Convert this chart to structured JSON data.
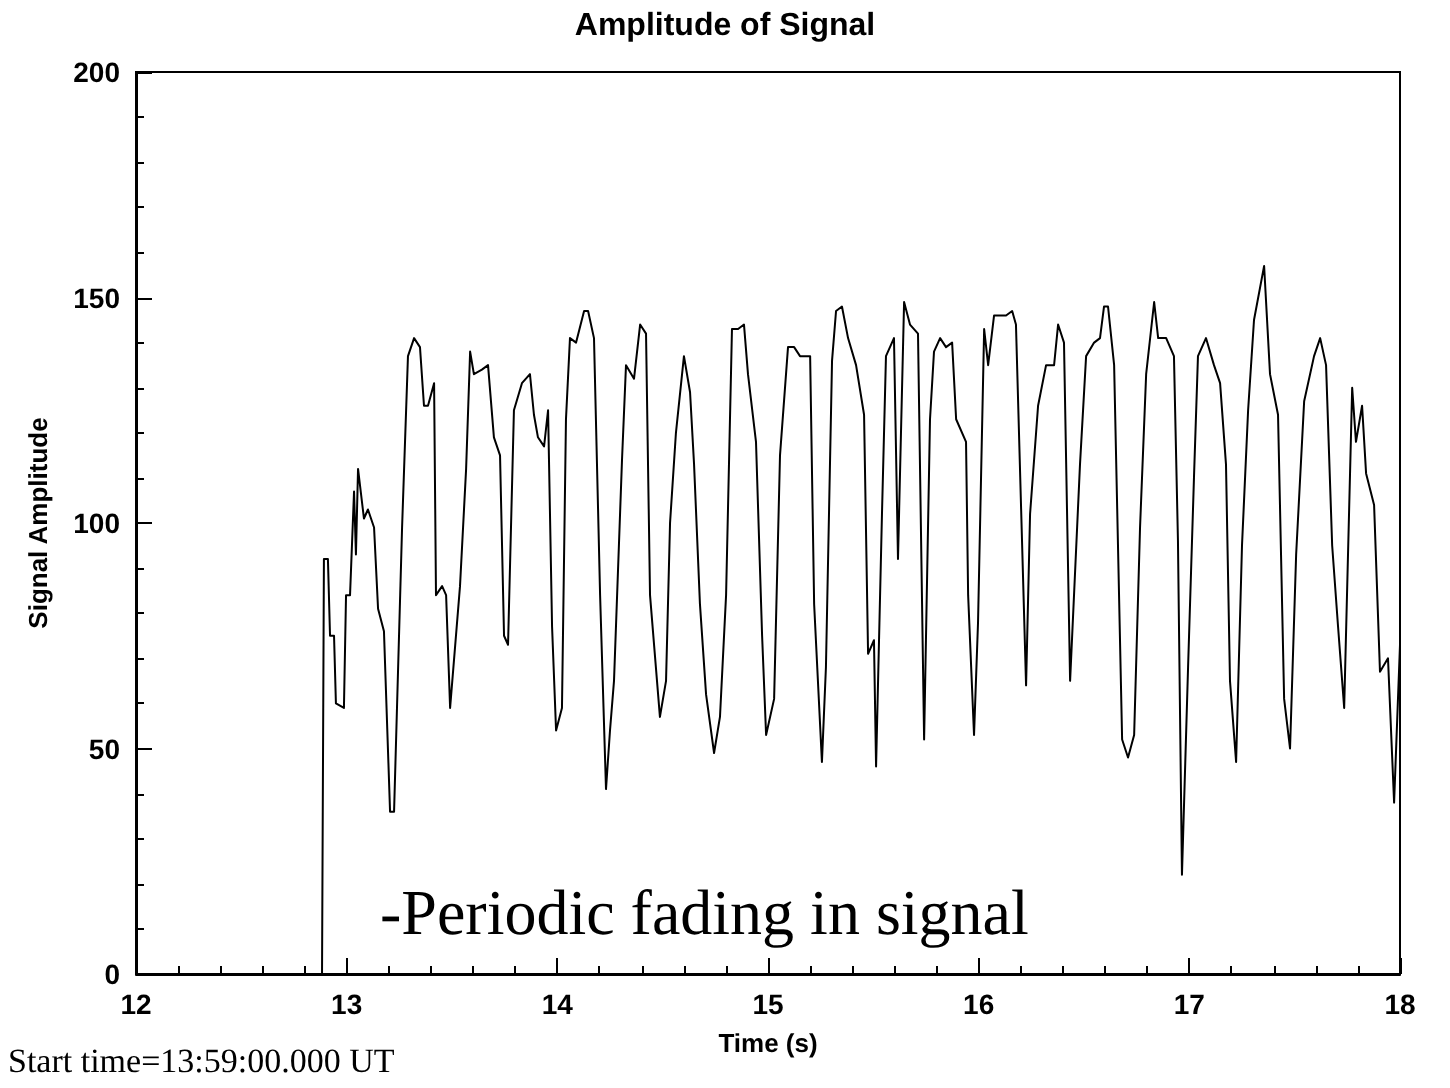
{
  "chart_data": {
    "type": "line",
    "title": "Amplitude of Signal",
    "xlabel": "Time (s)",
    "ylabel": "Signal Amplitude",
    "annotations": [
      "-Periodic fading in signal",
      "Start time=13:59:00.000 UT"
    ],
    "xlim": [
      12,
      18
    ],
    "xticks": [
      12,
      13,
      14,
      15,
      16,
      17,
      18
    ],
    "ylim": [
      0,
      200
    ],
    "yticks": [
      0,
      50,
      100,
      150,
      200
    ],
    "grid": false,
    "marker": "none",
    "line_style": "solid",
    "series": [
      {
        "color": "#000000",
        "x": [
          12.883,
          12.892,
          12.911,
          12.921,
          12.94,
          12.949,
          12.987,
          12.997,
          13.016,
          13.035,
          13.044,
          13.054,
          13.082,
          13.101,
          13.13,
          13.149,
          13.177,
          13.206,
          13.225,
          13.263,
          13.291,
          13.32,
          13.348,
          13.367,
          13.386,
          13.415,
          13.424,
          13.453,
          13.472,
          13.491,
          13.538,
          13.567,
          13.586,
          13.604,
          13.642,
          13.671,
          13.699,
          13.728,
          13.747,
          13.766,
          13.794,
          13.832,
          13.87,
          13.889,
          13.908,
          13.937,
          13.956,
          13.975,
          13.994,
          14.022,
          14.041,
          14.06,
          14.089,
          14.127,
          14.146,
          14.174,
          14.203,
          14.231,
          14.25,
          14.269,
          14.307,
          14.326,
          14.364,
          14.393,
          14.421,
          14.44,
          14.487,
          14.516,
          14.535,
          14.563,
          14.601,
          14.63,
          14.649,
          14.677,
          14.706,
          14.744,
          14.772,
          14.801,
          14.829,
          14.858,
          14.886,
          14.905,
          14.943,
          14.972,
          14.991,
          15.029,
          15.057,
          15.095,
          15.124,
          15.152,
          15.2,
          15.219,
          15.256,
          15.275,
          15.304,
          15.323,
          15.351,
          15.38,
          15.418,
          15.456,
          15.475,
          15.503,
          15.513,
          15.541,
          15.56,
          15.598,
          15.617,
          15.646,
          15.674,
          15.712,
          15.741,
          15.769,
          15.788,
          15.817,
          15.845,
          15.874,
          15.893,
          15.94,
          15.95,
          15.978,
          15.997,
          16.026,
          16.045,
          16.073,
          16.13,
          16.159,
          16.177,
          16.225,
          16.244,
          16.282,
          16.32,
          16.358,
          16.377,
          16.405,
          16.434,
          16.481,
          16.51,
          16.548,
          16.576,
          16.595,
          16.614,
          16.643,
          16.681,
          16.709,
          16.738,
          16.766,
          16.795,
          16.833,
          16.852,
          16.89,
          16.927,
          16.946,
          16.965,
          16.994,
          17.022,
          17.041,
          17.079,
          17.117,
          17.146,
          17.174,
          17.193,
          17.222,
          17.25,
          17.279,
          17.307,
          17.355,
          17.383,
          17.421,
          17.45,
          17.478,
          17.507,
          17.545,
          17.592,
          17.621,
          17.649,
          17.678,
          17.706,
          17.735,
          17.773,
          17.791,
          17.82,
          17.839,
          17.877,
          17.905,
          17.943,
          17.972,
          18.0
        ],
        "values": [
          0,
          92,
          92,
          75,
          75,
          60,
          59,
          84,
          84,
          107,
          93,
          112,
          101,
          103,
          99,
          81,
          76,
          36,
          36,
          99,
          137,
          141,
          139,
          126,
          126,
          131,
          84,
          86,
          84,
          59,
          86,
          112,
          138,
          133,
          134,
          135,
          119,
          115,
          75,
          73,
          125,
          131,
          133,
          124,
          119,
          117,
          125,
          77,
          54,
          59,
          123,
          141,
          140,
          147,
          147,
          141,
          84,
          41,
          54,
          65,
          114,
          135,
          132,
          144,
          142,
          84,
          57,
          65,
          100,
          120,
          137,
          129,
          113,
          82,
          62,
          49,
          57,
          84,
          143,
          143,
          144,
          133,
          118,
          75,
          53,
          61,
          115,
          139,
          139,
          137,
          137,
          82,
          47,
          68,
          136,
          147,
          148,
          141,
          135,
          124,
          71,
          74,
          46,
          102,
          137,
          141,
          92,
          149,
          144,
          142,
          52,
          123,
          138,
          141,
          139,
          140,
          123,
          118,
          84,
          53,
          78,
          143,
          135,
          146,
          146,
          147,
          144,
          64,
          102,
          126,
          135,
          135,
          144,
          140,
          65,
          113,
          137,
          140,
          141,
          148,
          148,
          135,
          52,
          48,
          53,
          99,
          133,
          149,
          141,
          141,
          137,
          96,
          22,
          68,
          110,
          137,
          141,
          135,
          131,
          113,
          65,
          47,
          95,
          125,
          145,
          157,
          133,
          124,
          61,
          50,
          93,
          127,
          137,
          141,
          135,
          95,
          77,
          59,
          130,
          118,
          126,
          111,
          104,
          67,
          70,
          38,
          73
        ]
      }
    ]
  }
}
